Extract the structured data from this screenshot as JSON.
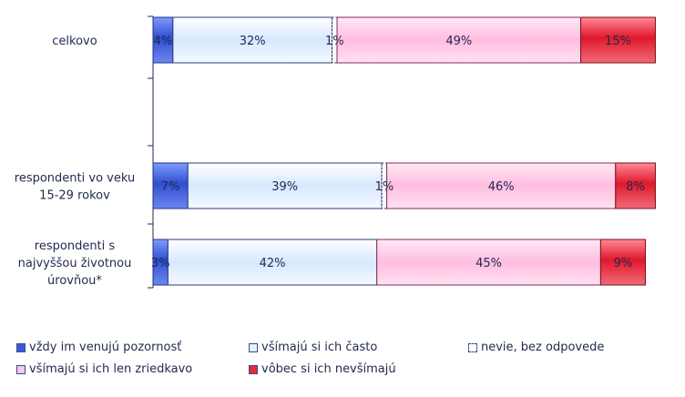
{
  "chart_data": {
    "type": "bar",
    "orientation": "horizontal",
    "stacked": "100%",
    "categories": [
      "celkovo",
      "respondenti vo veku 15-29 rokov",
      "respondenti s najvyššou životnou úrovňou*"
    ],
    "category_lines": [
      [
        "celkovo"
      ],
      [
        "respondenti vo veku",
        "15-29 rokov"
      ],
      [
        "respondenti s",
        "najvyššou životnou",
        "úrovňou*"
      ]
    ],
    "series": [
      {
        "name": "vždy im venujú pozornosť",
        "values": [
          4,
          7,
          3
        ],
        "labels": [
          "4%",
          "7%",
          "3%"
        ],
        "color": "#3b5bdb"
      },
      {
        "name": "všímajú si ich často",
        "values": [
          32,
          39,
          42
        ],
        "labels": [
          "32%",
          "39%",
          "42%"
        ],
        "color": "#dcecff"
      },
      {
        "name": "nevie, bez odpovede",
        "values": [
          1,
          1,
          0
        ],
        "labels": [
          "1%",
          "1%",
          ""
        ],
        "color": "#ffffff"
      },
      {
        "name": "všímajú si ich len zriedkavo",
        "values": [
          49,
          46,
          45
        ],
        "labels": [
          "49%",
          "46%",
          "45%"
        ],
        "color": "#ffc8e6"
      },
      {
        "name": "vôbec si ich nevšímajú",
        "values": [
          15,
          8,
          9
        ],
        "labels": [
          "15%",
          "8%",
          "9%"
        ],
        "color": "#e8283c"
      }
    ],
    "xlim": [
      0,
      100
    ],
    "grid": false,
    "legend_position": "bottom"
  }
}
